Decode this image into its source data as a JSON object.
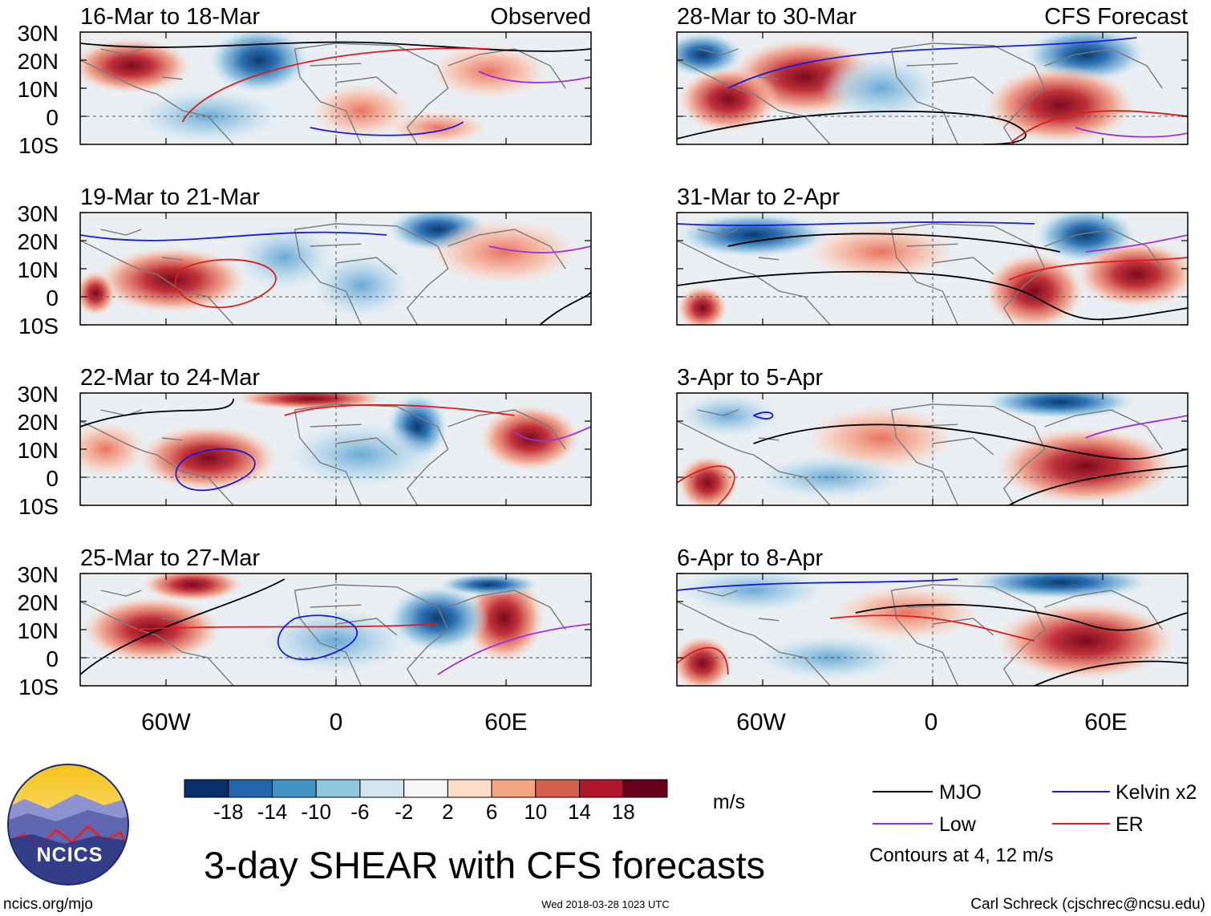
{
  "figure": {
    "title": "3-day SHEAR with CFS forecasts",
    "units": "m/s",
    "website": "ncics.org/mjo",
    "timestamp": "Wed 2018-03-28 1023 UTC",
    "author": "Carl Schreck (cjschrec@ncsu.edu)",
    "logo_text": "NCICS"
  },
  "columns": {
    "left_tag": "Observed",
    "right_tag": "CFS Forecast"
  },
  "axes": {
    "lat_labels": [
      "30N",
      "20N",
      "10N",
      "0",
      "10S"
    ],
    "lon_labels": [
      "60W",
      "0",
      "60E"
    ]
  },
  "panels": {
    "left": [
      "16-Mar to 18-Mar",
      "19-Mar to 21-Mar",
      "22-Mar to 24-Mar",
      "25-Mar to 27-Mar"
    ],
    "right": [
      "28-Mar to 30-Mar",
      "31-Mar to 2-Apr",
      "3-Apr to 5-Apr",
      "6-Apr to 8-Apr"
    ]
  },
  "colorbar": {
    "labels": [
      "-18",
      "-14",
      "-10",
      "-6",
      "-2",
      "2",
      "6",
      "10",
      "14",
      "18"
    ],
    "colors": [
      "#08306b",
      "#2166ac",
      "#4393c3",
      "#92c5de",
      "#d1e5f0",
      "#f7f7f7",
      "#fddbc7",
      "#f4a582",
      "#d6604d",
      "#b2182b",
      "#67001f"
    ]
  },
  "legend": {
    "items": [
      {
        "label": "MJO",
        "color": "#000000"
      },
      {
        "label": "Kelvin x2",
        "color": "#1a1adf"
      },
      {
        "label": "Low",
        "color": "#9b30e0"
      },
      {
        "label": "ER",
        "color": "#e01b1b"
      }
    ],
    "note": "Contours at 4, 12 m/s"
  }
}
